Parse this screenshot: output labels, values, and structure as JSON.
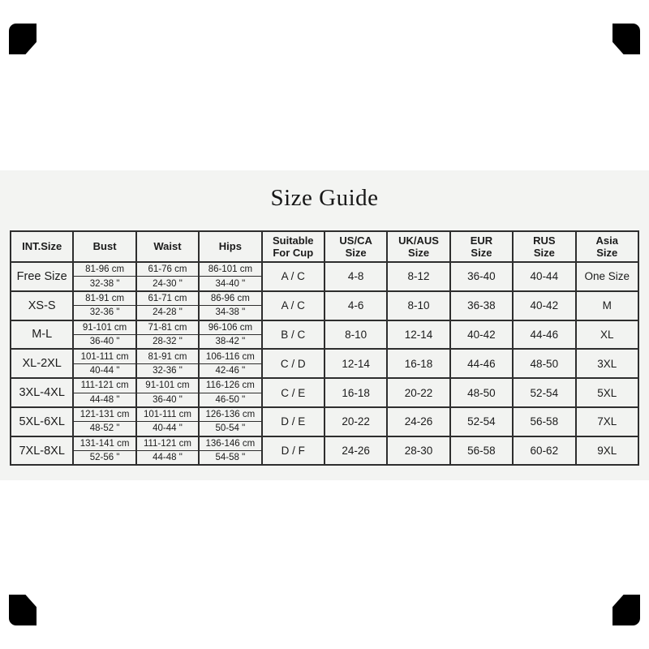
{
  "title": "Size Guide",
  "colors": {
    "page_background": "#ffffff",
    "panel_background": "#f3f4f2",
    "table_border": "#2e2e2e",
    "text": "#1b1b1b",
    "corner_mark": "#000000"
  },
  "table": {
    "headers": [
      "INT.Size",
      "Bust",
      "Waist",
      "Hips",
      "Suitable\nFor Cup",
      "US/CA\nSize",
      "UK/AUS\nSize",
      "EUR\nSize",
      "RUS\nSize",
      "Asia\nSize"
    ],
    "rows": [
      {
        "int_size": "Free Size",
        "bust_cm": "81-96 cm",
        "bust_in": "32-38 \"",
        "waist_cm": "61-76 cm",
        "waist_in": "24-30 \"",
        "hips_cm": "86-101 cm",
        "hips_in": "34-40 \"",
        "cup": "A / C",
        "usca": "4-8",
        "ukaus": "8-12",
        "eur": "36-40",
        "rus": "40-44",
        "asia": "One Size"
      },
      {
        "int_size": "XS-S",
        "bust_cm": "81-91 cm",
        "bust_in": "32-36 \"",
        "waist_cm": "61-71 cm",
        "waist_in": "24-28 \"",
        "hips_cm": "86-96 cm",
        "hips_in": "34-38 \"",
        "cup": "A / C",
        "usca": "4-6",
        "ukaus": "8-10",
        "eur": "36-38",
        "rus": "40-42",
        "asia": "M"
      },
      {
        "int_size": "M-L",
        "bust_cm": "91-101 cm",
        "bust_in": "36-40 \"",
        "waist_cm": "71-81 cm",
        "waist_in": "28-32 \"",
        "hips_cm": "96-106 cm",
        "hips_in": "38-42 \"",
        "cup": "B / C",
        "usca": "8-10",
        "ukaus": "12-14",
        "eur": "40-42",
        "rus": "44-46",
        "asia": "XL"
      },
      {
        "int_size": "XL-2XL",
        "bust_cm": "101-111 cm",
        "bust_in": "40-44 \"",
        "waist_cm": "81-91 cm",
        "waist_in": "32-36 \"",
        "hips_cm": "106-116 cm",
        "hips_in": "42-46 \"",
        "cup": "C / D",
        "usca": "12-14",
        "ukaus": "16-18",
        "eur": "44-46",
        "rus": "48-50",
        "asia": "3XL"
      },
      {
        "int_size": "3XL-4XL",
        "bust_cm": "111-121 cm",
        "bust_in": "44-48 \"",
        "waist_cm": "91-101 cm",
        "waist_in": "36-40 \"",
        "hips_cm": "116-126 cm",
        "hips_in": "46-50 \"",
        "cup": "C / E",
        "usca": "16-18",
        "ukaus": "20-22",
        "eur": "48-50",
        "rus": "52-54",
        "asia": "5XL"
      },
      {
        "int_size": "5XL-6XL",
        "bust_cm": "121-131 cm",
        "bust_in": "48-52 \"",
        "waist_cm": "101-111 cm",
        "waist_in": "40-44 \"",
        "hips_cm": "126-136 cm",
        "hips_in": "50-54 \"",
        "cup": "D / E",
        "usca": "20-22",
        "ukaus": "24-26",
        "eur": "52-54",
        "rus": "56-58",
        "asia": "7XL"
      },
      {
        "int_size": "7XL-8XL",
        "bust_cm": "131-141 cm",
        "bust_in": "52-56 \"",
        "waist_cm": "111-121 cm",
        "waist_in": "44-48 \"",
        "hips_cm": "136-146 cm",
        "hips_in": "54-58 \"",
        "cup": "D / F",
        "usca": "24-26",
        "ukaus": "28-30",
        "eur": "56-58",
        "rus": "60-62",
        "asia": "9XL"
      }
    ]
  }
}
